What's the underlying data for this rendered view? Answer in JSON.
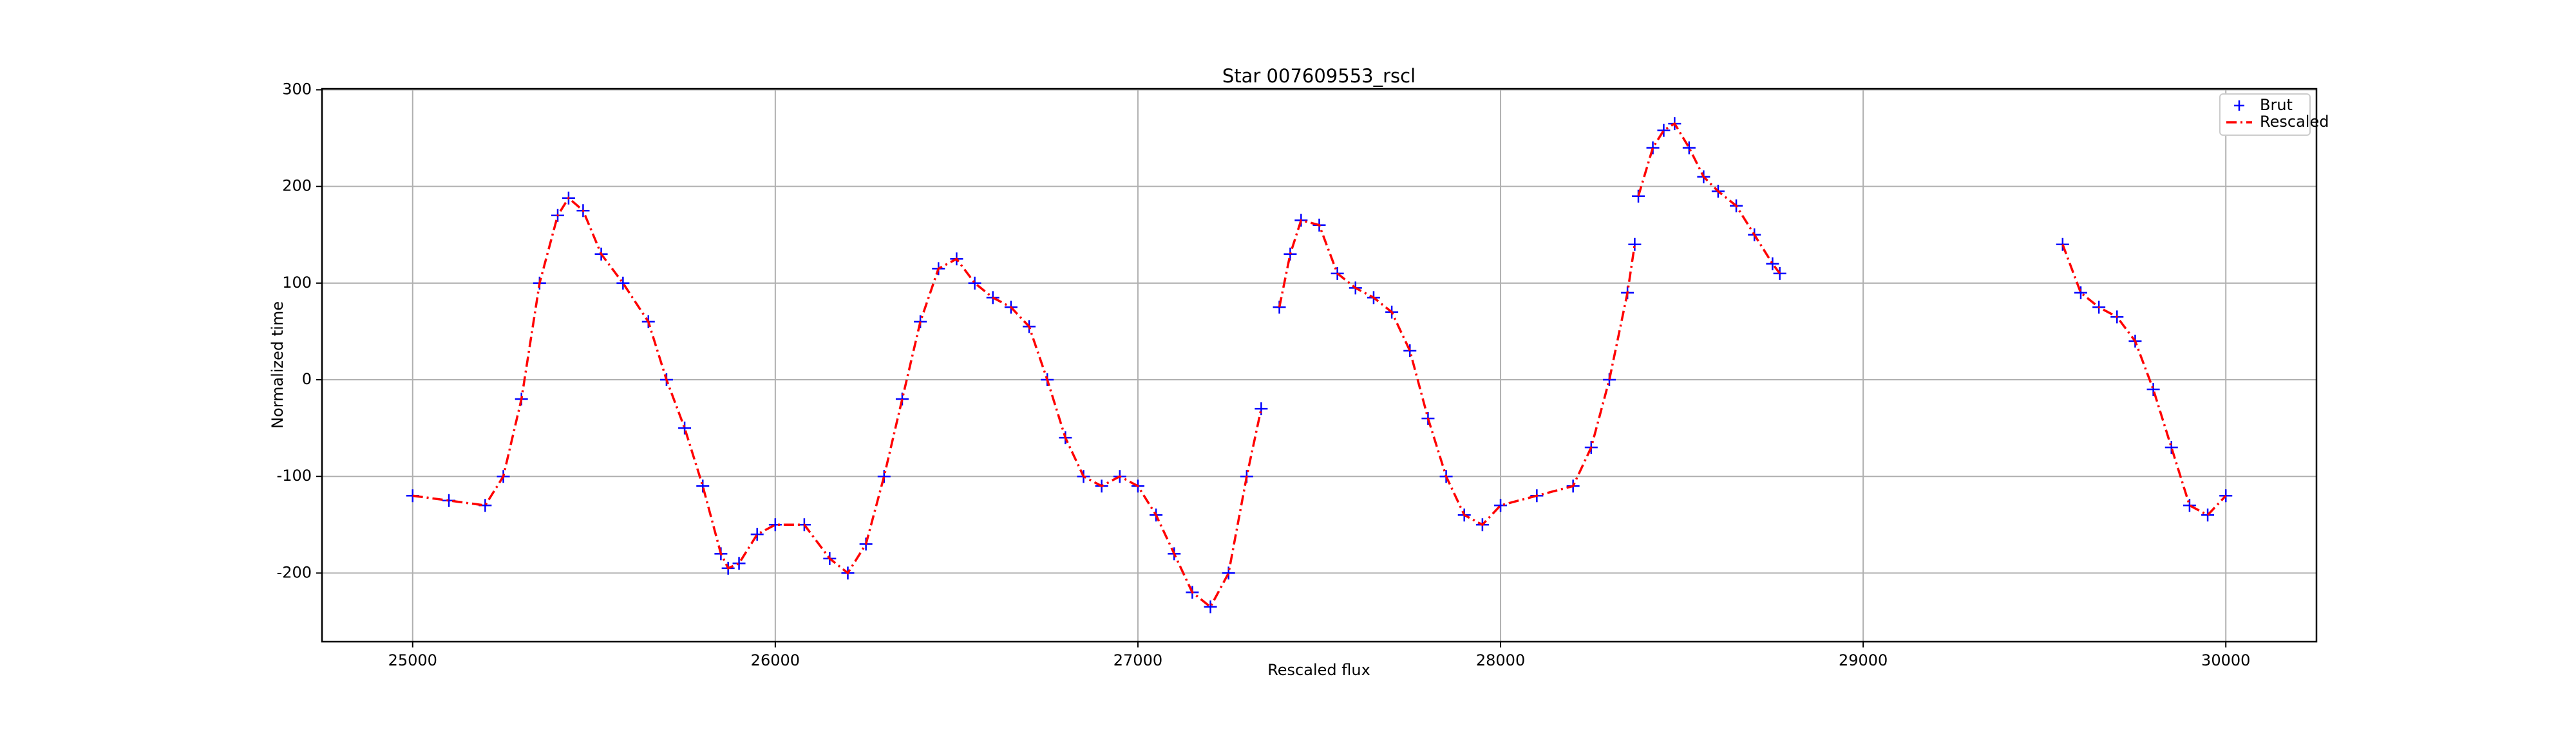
{
  "chart_data": {
    "type": "scatter",
    "title": "Star 007609553_rscl",
    "x_label": "Rescaled flux",
    "y_label": "Normalized time",
    "x": [
      25000,
      25100,
      25200,
      25250,
      25300,
      25350,
      25400,
      25430,
      25470,
      25520,
      25580,
      25650,
      25700,
      25750,
      25800,
      25850,
      25870,
      25900,
      25950,
      26000,
      26080,
      26150,
      26200,
      26250,
      26300,
      26350,
      26400,
      26450,
      26500,
      26550,
      26600,
      26650,
      26700,
      26750,
      26800,
      26850,
      26900,
      26950,
      27000,
      27050,
      27100,
      27150,
      27200,
      27250,
      27300,
      27340,
      27360,
      27390,
      27420,
      27450,
      27500,
      27550,
      27600,
      27650,
      27700,
      27750,
      27800,
      27850,
      27900,
      27950,
      28000,
      28100,
      28200,
      28250,
      28300,
      28350,
      28370,
      28375,
      28380,
      28420,
      28450,
      28480,
      28520,
      28560,
      28600,
      28650,
      28700,
      28750,
      28770,
      29000,
      29550,
      29600,
      29650,
      29700,
      29750,
      29800,
      29850,
      29900,
      29950,
      30000
    ],
    "series": [
      {
        "name": "Brut",
        "color": "#0000ff",
        "marker": "+",
        "values": [
          -120,
          -125,
          -130,
          -100,
          -20,
          100,
          170,
          188,
          175,
          130,
          100,
          60,
          0,
          -50,
          -110,
          -180,
          -195,
          -190,
          -160,
          -150,
          -150,
          -185,
          -200,
          -170,
          -100,
          -20,
          60,
          115,
          125,
          100,
          85,
          75,
          55,
          0,
          -60,
          -100,
          -110,
          -100,
          -110,
          -140,
          -180,
          -220,
          -235,
          -200,
          -100,
          -30,
          null,
          75,
          130,
          165,
          160,
          110,
          95,
          85,
          70,
          30,
          -40,
          -100,
          -140,
          -150,
          -130,
          -120,
          -110,
          -70,
          0,
          90,
          140,
          null,
          190,
          240,
          258,
          265,
          240,
          210,
          195,
          180,
          150,
          120,
          110,
          null,
          140,
          90,
          75,
          65,
          40,
          -10,
          -70,
          -130,
          -140,
          -120
        ]
      },
      {
        "name": "Rescaled",
        "color": "#ff0000",
        "line": "dashdot",
        "values": [
          -120,
          -125,
          -130,
          -100,
          -20,
          100,
          170,
          188,
          175,
          130,
          100,
          60,
          0,
          -50,
          -110,
          -180,
          -195,
          -190,
          -160,
          -150,
          -150,
          -185,
          -200,
          -170,
          -100,
          -20,
          60,
          115,
          125,
          100,
          85,
          75,
          55,
          0,
          -60,
          -100,
          -110,
          -100,
          -110,
          -140,
          -180,
          -220,
          -235,
          -200,
          -100,
          -30,
          null,
          75,
          130,
          165,
          160,
          110,
          95,
          85,
          70,
          30,
          -40,
          -100,
          -140,
          -150,
          -130,
          -120,
          -110,
          -70,
          0,
          90,
          140,
          null,
          190,
          240,
          258,
          265,
          240,
          210,
          195,
          180,
          150,
          120,
          110,
          null,
          140,
          90,
          75,
          65,
          40,
          -10,
          -70,
          -130,
          -140,
          -120
        ]
      }
    ],
    "xlim": [
      24750,
      30250
    ],
    "ylim": [
      -271,
      301
    ],
    "xticks": [
      25000,
      26000,
      27000,
      28000,
      29000,
      30000
    ],
    "yticks": [
      -200,
      -100,
      0,
      100,
      200,
      300
    ],
    "grid": true,
    "legend": "upper right"
  }
}
